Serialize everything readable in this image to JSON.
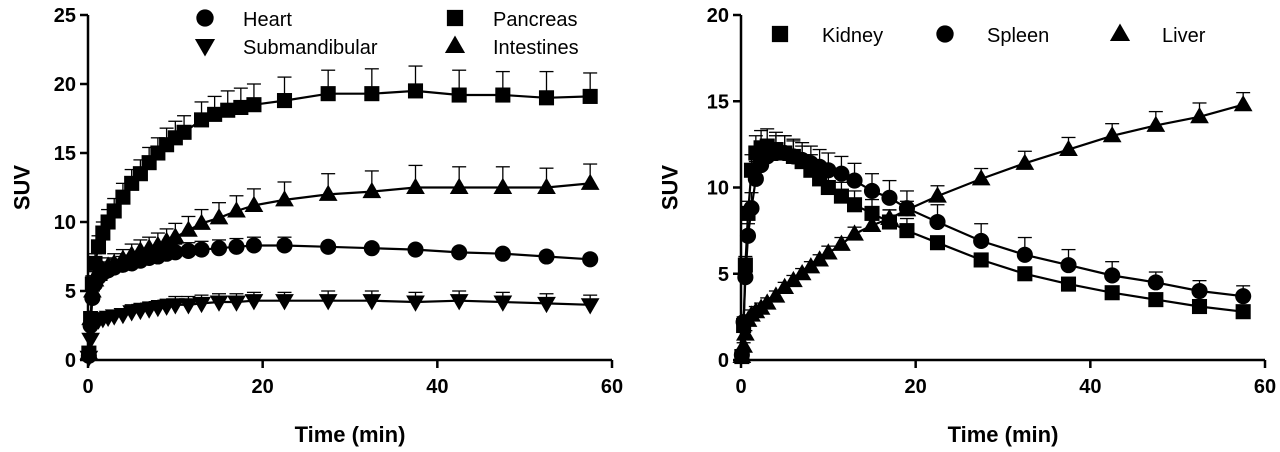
{
  "chart_data": [
    {
      "type": "scatter",
      "xlabel": "Time (min)",
      "ylabel": "SUV",
      "xlim": [
        0,
        60
      ],
      "ylim": [
        0,
        25
      ],
      "xticks": [
        0,
        20,
        40,
        60
      ],
      "yticks": [
        0,
        5,
        10,
        15,
        20,
        25
      ],
      "grid": false,
      "legend_position": "top",
      "series": [
        {
          "name": "Heart",
          "marker": "circle",
          "x": [
            0.1,
            0.3,
            0.5,
            0.8,
            1.2,
            1.7,
            2.3,
            3,
            4,
            5,
            6,
            7,
            8,
            9,
            10,
            11.5,
            13,
            15,
            17,
            19,
            22.5,
            27.5,
            32.5,
            37.5,
            42.5,
            47.5,
            52.5,
            57.5
          ],
          "y": [
            0.3,
            2.5,
            4.5,
            5.5,
            6.0,
            6.3,
            6.5,
            6.7,
            6.9,
            7.0,
            7.2,
            7.4,
            7.5,
            7.7,
            7.8,
            7.9,
            8.0,
            8.1,
            8.2,
            8.3,
            8.3,
            8.2,
            8.1,
            8.0,
            7.8,
            7.7,
            7.5,
            7.3
          ],
          "err": [
            0.2,
            0.5,
            0.5,
            0.6,
            0.6,
            0.6,
            0.6,
            0.6,
            0.6,
            0.6,
            0.6,
            0.6,
            0.6,
            0.6,
            0.6,
            0.6,
            0.6,
            0.6,
            0.6,
            0.6,
            0.6,
            0.0,
            0.0,
            0.0,
            0.0,
            0.0,
            0.0,
            0.0
          ]
        },
        {
          "name": "Pancreas",
          "marker": "square",
          "x": [
            0.1,
            0.3,
            0.5,
            0.8,
            1.2,
            1.7,
            2.3,
            3,
            4,
            5,
            6,
            7,
            8,
            9,
            10,
            11,
            13,
            14.5,
            16,
            17.5,
            19,
            22.5,
            27.5,
            32.5,
            37.5,
            42.5,
            47.5,
            52.5,
            57.5
          ],
          "y": [
            0.5,
            3.0,
            5.5,
            7.0,
            8.2,
            9.2,
            10.0,
            10.8,
            11.8,
            12.8,
            13.5,
            14.3,
            15.0,
            15.6,
            16.1,
            16.5,
            17.4,
            17.8,
            18.1,
            18.3,
            18.5,
            18.8,
            19.3,
            19.3,
            19.5,
            19.2,
            19.2,
            19.0,
            19.1
          ],
          "err": [
            0.3,
            0.5,
            0.6,
            0.7,
            0.8,
            0.8,
            0.9,
            0.9,
            1.0,
            1.0,
            1.0,
            1.1,
            1.1,
            1.2,
            1.2,
            1.2,
            1.3,
            1.3,
            1.4,
            1.4,
            1.5,
            1.7,
            1.7,
            1.8,
            1.8,
            1.8,
            1.7,
            1.9,
            1.7
          ]
        },
        {
          "name": "Submandibular",
          "marker": "triangle-down",
          "x": [
            0.1,
            0.3,
            0.5,
            0.8,
            1.2,
            1.7,
            2.3,
            3,
            4,
            5,
            6,
            7,
            8,
            9,
            10,
            11.5,
            13,
            15,
            17,
            19,
            22.5,
            27.5,
            32.5,
            37.5,
            42.5,
            47.5,
            52.5,
            57.5
          ],
          "y": [
            0.2,
            1.5,
            2.4,
            2.7,
            2.9,
            3.0,
            3.1,
            3.2,
            3.3,
            3.5,
            3.6,
            3.7,
            3.8,
            3.9,
            4.0,
            4.0,
            4.1,
            4.2,
            4.2,
            4.3,
            4.3,
            4.3,
            4.3,
            4.2,
            4.3,
            4.2,
            4.1,
            4.0
          ],
          "err": [
            0.2,
            0.3,
            0.4,
            0.4,
            0.4,
            0.4,
            0.4,
            0.4,
            0.4,
            0.5,
            0.5,
            0.5,
            0.5,
            0.5,
            0.6,
            0.6,
            0.6,
            0.6,
            0.6,
            0.6,
            0.6,
            0.7,
            0.7,
            0.7,
            0.7,
            0.7,
            0.7,
            0.7
          ]
        },
        {
          "name": "Intestines",
          "marker": "triangle-up",
          "x": [
            0.1,
            0.3,
            0.5,
            0.8,
            1.2,
            1.7,
            2.3,
            3,
            4,
            5,
            6,
            7,
            8,
            9,
            10,
            11.5,
            13,
            15,
            17,
            19,
            22.5,
            27.5,
            32.5,
            37.5,
            42.5,
            47.5,
            52.5,
            57.5
          ],
          "y": [
            0.5,
            3.0,
            5.0,
            5.8,
            6.2,
            6.5,
            6.8,
            7.0,
            7.3,
            7.6,
            7.9,
            8.1,
            8.3,
            8.6,
            8.9,
            9.4,
            9.9,
            10.3,
            10.8,
            11.2,
            11.6,
            12.0,
            12.2,
            12.5,
            12.5,
            12.5,
            12.5,
            12.8
          ],
          "err": [
            0.3,
            0.5,
            0.5,
            0.6,
            0.6,
            0.6,
            0.6,
            0.7,
            0.7,
            0.8,
            0.8,
            0.8,
            0.9,
            0.9,
            1.0,
            1.0,
            1.0,
            1.1,
            1.1,
            1.2,
            1.3,
            1.5,
            1.5,
            1.6,
            1.5,
            1.5,
            1.4,
            1.4
          ]
        }
      ]
    },
    {
      "type": "scatter",
      "xlabel": "Time (min)",
      "ylabel": "SUV",
      "xlim": [
        0,
        60
      ],
      "ylim": [
        0,
        20
      ],
      "xticks": [
        0,
        20,
        40,
        60
      ],
      "yticks": [
        0,
        5,
        10,
        15,
        20
      ],
      "grid": false,
      "legend_position": "top",
      "series": [
        {
          "name": "Kidney",
          "marker": "square",
          "x": [
            0.1,
            0.3,
            0.5,
            0.8,
            1.2,
            1.7,
            2.3,
            3,
            4,
            5,
            6,
            7,
            8,
            9,
            10,
            11.5,
            13,
            15,
            17,
            19,
            22.5,
            27.5,
            32.5,
            37.5,
            42.5,
            47.5,
            52.5,
            57.5
          ],
          "y": [
            0.2,
            2.0,
            5.5,
            8.5,
            11.0,
            12.0,
            12.3,
            12.4,
            12.2,
            12.0,
            11.8,
            11.5,
            11.0,
            10.5,
            10.0,
            9.5,
            9.0,
            8.5,
            8.0,
            7.5,
            6.8,
            5.8,
            5.0,
            4.4,
            3.9,
            3.5,
            3.1,
            2.8
          ],
          "err": [
            0.2,
            0.3,
            0.5,
            0.7,
            0.9,
            1.0,
            1.0,
            1.0,
            1.0,
            1.0,
            0.9,
            0.9,
            0.9,
            0.9,
            0.8,
            0.8,
            0.8,
            0.8,
            0.7,
            0.7,
            0.0,
            0.0,
            0.0,
            0.0,
            0.0,
            0.0,
            0.0,
            0.0
          ]
        },
        {
          "name": "Spleen",
          "marker": "circle",
          "x": [
            0.1,
            0.3,
            0.5,
            0.8,
            1.2,
            1.7,
            2.3,
            3,
            4,
            5,
            6,
            7,
            8,
            9,
            10,
            11.5,
            13,
            15,
            17,
            19,
            22.5,
            27.5,
            32.5,
            37.5,
            42.5,
            47.5,
            52.5,
            57.5
          ],
          "y": [
            0.3,
            2.2,
            4.8,
            7.2,
            8.8,
            10.5,
            11.3,
            11.8,
            12.0,
            12.0,
            11.8,
            11.6,
            11.4,
            11.2,
            11.0,
            10.8,
            10.4,
            9.8,
            9.4,
            8.8,
            8.0,
            6.9,
            6.1,
            5.5,
            4.9,
            4.5,
            4.0,
            3.7
          ],
          "err": [
            0.2,
            0.3,
            0.5,
            0.7,
            0.9,
            1.0,
            1.0,
            1.0,
            1.0,
            1.0,
            1.0,
            1.0,
            1.0,
            1.0,
            1.0,
            1.0,
            1.0,
            1.0,
            1.0,
            1.0,
            1.0,
            1.0,
            1.0,
            0.9,
            0.8,
            0.6,
            0.6,
            0.6
          ]
        },
        {
          "name": "Liver",
          "marker": "triangle-up",
          "x": [
            0.1,
            0.3,
            0.5,
            0.8,
            1.2,
            1.7,
            2.3,
            3,
            4,
            5,
            6,
            7,
            8,
            9,
            10,
            11.5,
            13,
            15,
            17,
            19,
            22.5,
            27.5,
            32.5,
            37.5,
            42.5,
            47.5,
            52.5,
            57.5
          ],
          "y": [
            0.2,
            0.8,
            1.5,
            2.3,
            2.6,
            2.8,
            3.0,
            3.3,
            3.7,
            4.2,
            4.6,
            5.0,
            5.4,
            5.8,
            6.2,
            6.7,
            7.3,
            7.8,
            8.2,
            8.7,
            9.5,
            10.5,
            11.4,
            12.2,
            13.0,
            13.6,
            14.1,
            14.8
          ],
          "err": [
            0.1,
            0.2,
            0.2,
            0.3,
            0.3,
            0.3,
            0.3,
            0.3,
            0.3,
            0.3,
            0.3,
            0.3,
            0.3,
            0.3,
            0.4,
            0.4,
            0.4,
            0.4,
            0.5,
            0.5,
            0.6,
            0.6,
            0.7,
            0.7,
            0.7,
            0.8,
            0.8,
            0.7
          ]
        }
      ]
    }
  ]
}
